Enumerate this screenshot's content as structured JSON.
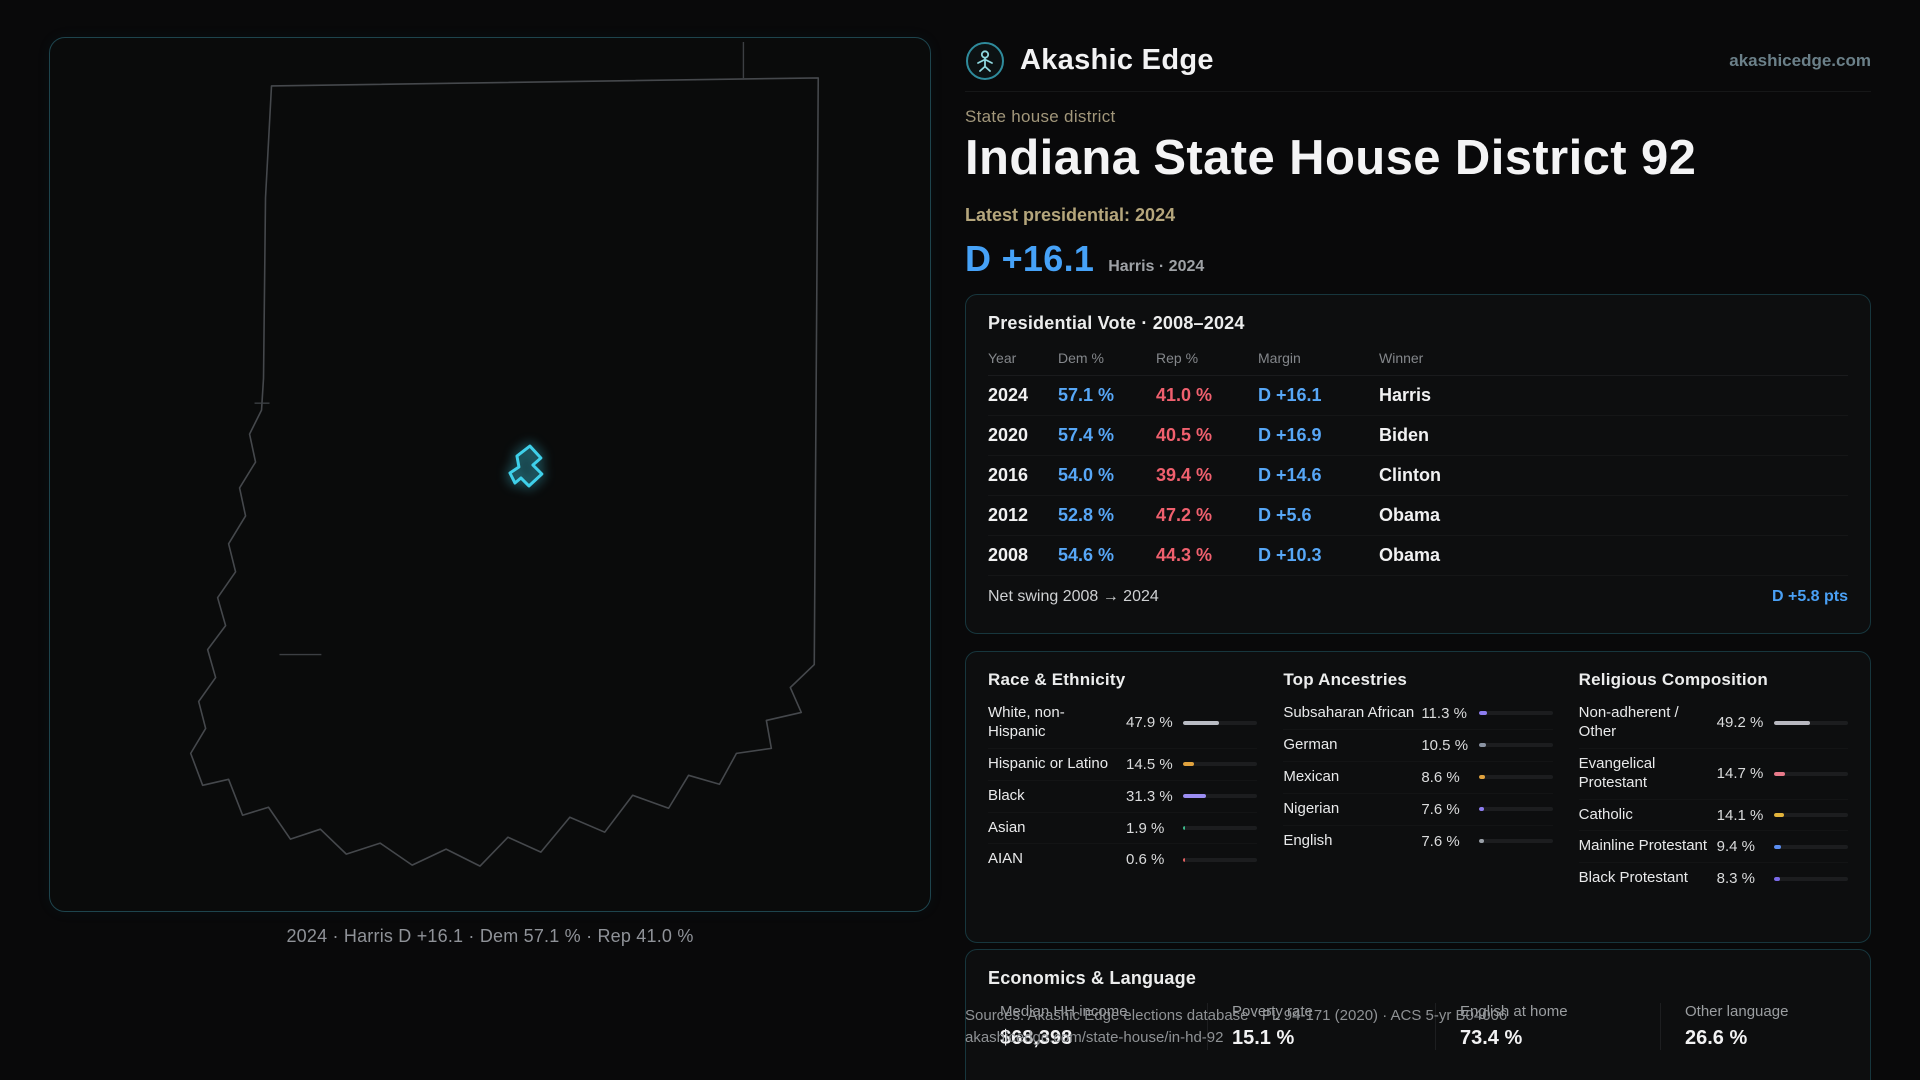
{
  "header": {
    "brand": "Akashic Edge",
    "site": "akashicedge.com"
  },
  "map": {
    "caption": "2024 · Harris D +16.1 · Dem 57.1 % · Rep 41.0 %"
  },
  "district": {
    "kicker": "State house district",
    "title": "Indiana State House District 92",
    "latest_label": "Latest presidential: 2024",
    "margin_big": "D +16.1",
    "margin_context": "Harris · 2024"
  },
  "colors": {
    "dem": "#57a7f7",
    "rep": "#f0606e",
    "accent": "#3fd0ea"
  },
  "presidential_table": {
    "title": "Presidential Vote · 2008–2024",
    "columns": [
      "Year",
      "Dem %",
      "Rep %",
      "Margin",
      "Winner"
    ],
    "rows": [
      {
        "year": "2024",
        "dem": "57.1 %",
        "rep": "41.0 %",
        "margin": "D +16.1",
        "winner": "Harris"
      },
      {
        "year": "2020",
        "dem": "57.4 %",
        "rep": "40.5 %",
        "margin": "D +16.9",
        "winner": "Biden"
      },
      {
        "year": "2016",
        "dem": "54.0 %",
        "rep": "39.4 %",
        "margin": "D +14.6",
        "winner": "Clinton"
      },
      {
        "year": "2012",
        "dem": "52.8 %",
        "rep": "47.2 %",
        "margin": "D +5.6",
        "winner": "Obama"
      },
      {
        "year": "2008",
        "dem": "54.6 %",
        "rep": "44.3 %",
        "margin": "D +10.3",
        "winner": "Obama"
      }
    ],
    "footer_label": "Net swing 2008 → 2024",
    "footer_value": "D +5.8 pts"
  },
  "demographics": {
    "race": {
      "title": "Race & Ethnicity",
      "rows": [
        {
          "label": "White, non-Hispanic",
          "value": "47.9 %",
          "pct": 47.9,
          "color": "#b9bcc4"
        },
        {
          "label": "Hispanic or Latino",
          "value": "14.5 %",
          "pct": 14.5,
          "color": "#e0a23e"
        },
        {
          "label": "Black",
          "value": "31.3 %",
          "pct": 31.3,
          "color": "#9b8df2"
        },
        {
          "label": "Asian",
          "value": "1.9 %",
          "pct": 1.9,
          "color": "#3cb98a"
        },
        {
          "label": "AIAN",
          "value": "0.6 %",
          "pct": 0.6,
          "color": "#e06060"
        }
      ]
    },
    "ancestries": {
      "title": "Top Ancestries",
      "rows": [
        {
          "label": "Subsaharan African",
          "value": "11.3 %",
          "pct": 11.3,
          "color": "#8d7df0"
        },
        {
          "label": "German",
          "value": "10.5 %",
          "pct": 10.5,
          "color": "#8a93a3"
        },
        {
          "label": "Mexican",
          "value": "8.6 %",
          "pct": 8.6,
          "color": "#e0a23e"
        },
        {
          "label": "Nigerian",
          "value": "7.6 %",
          "pct": 7.6,
          "color": "#8d7df0"
        },
        {
          "label": "English",
          "value": "7.6 %",
          "pct": 7.6,
          "color": "#9aa0a8"
        }
      ]
    },
    "religion": {
      "title": "Religious Composition",
      "rows": [
        {
          "label": "Non-adherent / Other",
          "value": "49.2 %",
          "pct": 49.2,
          "color": "#b8b8c0"
        },
        {
          "label": "Evangelical Protestant",
          "value": "14.7 %",
          "pct": 14.7,
          "color": "#e87a8a"
        },
        {
          "label": "Catholic",
          "value": "14.1 %",
          "pct": 14.1,
          "color": "#e2b33b"
        },
        {
          "label": "Mainline Protestant",
          "value": "9.4 %",
          "pct": 9.4,
          "color": "#5a8df0"
        },
        {
          "label": "Black Protestant",
          "value": "8.3 %",
          "pct": 8.3,
          "color": "#7a6ae8"
        }
      ]
    }
  },
  "economics": {
    "title": "Economics & Language",
    "stats": [
      {
        "label": "Median HH income",
        "value": "$68,398"
      },
      {
        "label": "Poverty rate",
        "value": "15.1 %"
      },
      {
        "label": "English at home",
        "value": "73.4 %"
      },
      {
        "label": "Other language",
        "value": "26.6 %"
      }
    ]
  },
  "footer": {
    "line1": "Sources: Akashic Edge elections database · PL 94-171 (2020) · ACS 5-yr B04006",
    "line2": "akashicedge.com/state-house/in-hd-92"
  }
}
